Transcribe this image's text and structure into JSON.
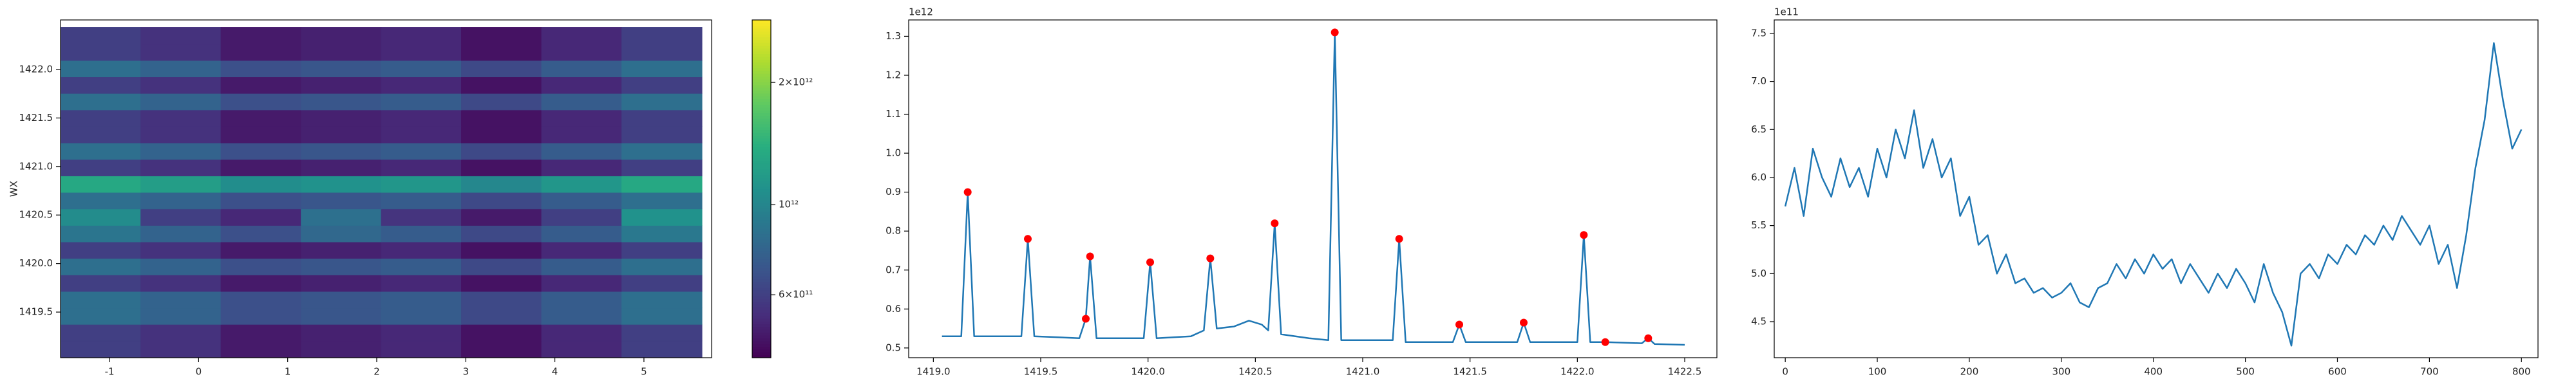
{
  "chart_data": [
    {
      "type": "heatmap",
      "ylabel": "WX",
      "colormap": "viridis",
      "x": [
        -1.1,
        -0.2,
        0.7,
        1.6,
        2.5,
        3.4,
        4.3,
        5.2
      ],
      "y": [
        1419.12,
        1419.29,
        1419.46,
        1419.63,
        1419.8,
        1419.97,
        1420.14,
        1420.31,
        1420.48,
        1420.65,
        1420.82,
        1420.99,
        1421.16,
        1421.33,
        1421.5,
        1421.67,
        1421.84,
        1422.01,
        1422.18,
        1422.35
      ],
      "z": [
        [
          600000000000.0,
          550000000000.0,
          480000000000.0,
          500000000000.0,
          520000000000.0,
          460000000000.0,
          520000000000.0,
          600000000000.0
        ],
        [
          600000000000.0,
          550000000000.0,
          480000000000.0,
          500000000000.0,
          520000000000.0,
          460000000000.0,
          520000000000.0,
          600000000000.0
        ],
        [
          840000000000.0,
          770000000000.0,
          670000000000.0,
          700000000000.0,
          730000000000.0,
          640000000000.0,
          730000000000.0,
          840000000000.0
        ],
        [
          840000000000.0,
          770000000000.0,
          670000000000.0,
          700000000000.0,
          730000000000.0,
          640000000000.0,
          730000000000.0,
          840000000000.0
        ],
        [
          600000000000.0,
          550000000000.0,
          480000000000.0,
          500000000000.0,
          520000000000.0,
          460000000000.0,
          520000000000.0,
          600000000000.0
        ],
        [
          840000000000.0,
          770000000000.0,
          670000000000.0,
          700000000000.0,
          730000000000.0,
          640000000000.0,
          730000000000.0,
          840000000000.0
        ],
        [
          600000000000.0,
          550000000000.0,
          480000000000.0,
          500000000000.0,
          520000000000.0,
          460000000000.0,
          520000000000.0,
          600000000000.0
        ],
        [
          880000000000.0,
          770000000000.0,
          670000000000.0,
          800000000000.0,
          730000000000.0,
          640000000000.0,
          730000000000.0,
          900000000000.0
        ],
        [
          1050000000000.0,
          600000000000.0,
          520000000000.0,
          850000000000.0,
          560000000000.0,
          480000000000.0,
          600000000000.0,
          1100000000000.0
        ],
        [
          840000000000.0,
          770000000000.0,
          670000000000.0,
          700000000000.0,
          730000000000.0,
          640000000000.0,
          730000000000.0,
          840000000000.0
        ],
        [
          1320000000000.0,
          1210000000000.0,
          1060000000000.0,
          1100000000000.0,
          1140000000000.0,
          1010000000000.0,
          1140000000000.0,
          1320000000000.0
        ],
        [
          600000000000.0,
          550000000000.0,
          480000000000.0,
          500000000000.0,
          520000000000.0,
          460000000000.0,
          520000000000.0,
          600000000000.0
        ],
        [
          840000000000.0,
          770000000000.0,
          670000000000.0,
          700000000000.0,
          730000000000.0,
          640000000000.0,
          730000000000.0,
          840000000000.0
        ],
        [
          600000000000.0,
          550000000000.0,
          480000000000.0,
          500000000000.0,
          520000000000.0,
          460000000000.0,
          520000000000.0,
          600000000000.0
        ],
        [
          600000000000.0,
          550000000000.0,
          480000000000.0,
          500000000000.0,
          520000000000.0,
          460000000000.0,
          520000000000.0,
          600000000000.0
        ],
        [
          840000000000.0,
          770000000000.0,
          670000000000.0,
          700000000000.0,
          730000000000.0,
          640000000000.0,
          730000000000.0,
          840000000000.0
        ],
        [
          600000000000.0,
          550000000000.0,
          480000000000.0,
          500000000000.0,
          520000000000.0,
          460000000000.0,
          520000000000.0,
          600000000000.0
        ],
        [
          840000000000.0,
          770000000000.0,
          670000000000.0,
          700000000000.0,
          730000000000.0,
          640000000000.0,
          730000000000.0,
          840000000000.0
        ],
        [
          600000000000.0,
          550000000000.0,
          480000000000.0,
          500000000000.0,
          520000000000.0,
          460000000000.0,
          520000000000.0,
          600000000000.0
        ],
        [
          600000000000.0,
          550000000000.0,
          480000000000.0,
          500000000000.0,
          520000000000.0,
          460000000000.0,
          520000000000.0,
          600000000000.0
        ]
      ],
      "xlim": [
        -1.55,
        5.76
      ],
      "ylim": [
        1419.03,
        1422.51
      ],
      "xticks": [
        -1,
        0,
        1,
        2,
        3,
        4,
        5
      ],
      "yticks": [
        1419.5,
        {
          "value": 1420,
          "label": "1420.0"
        },
        1420.5,
        {
          "value": 1421,
          "label": "1421.0"
        },
        1421.5,
        {
          "value": 1422,
          "label": "1422.0"
        }
      ],
      "colorbar": {
        "scale": "log",
        "lim": [
          420000000000.0,
          2850000000000.0
        ],
        "ticks": [
          {
            "value": 600000000000.0,
            "label": "6×10¹¹"
          },
          {
            "value": 1000000000000.0,
            "label": "10¹²"
          },
          {
            "value": 2000000000000.0,
            "label": "2×10¹²"
          }
        ]
      }
    },
    {
      "type": "line",
      "offset_text": "1e12",
      "series": [
        {
          "style": "line",
          "color": "#1f77b4",
          "x": [
            1419.04,
            1419.13,
            1419.16,
            1419.19,
            1419.41,
            1419.44,
            1419.47,
            1419.68,
            1419.71,
            1419.73,
            1419.76,
            1419.98,
            1420.01,
            1420.04,
            1420.2,
            1420.26,
            1420.29,
            1420.32,
            1420.4,
            1420.47,
            1420.53,
            1420.56,
            1420.59,
            1420.62,
            1420.75,
            1420.84,
            1420.87,
            1420.9,
            1421.14,
            1421.17,
            1421.2,
            1421.42,
            1421.45,
            1421.48,
            1421.72,
            1421.75,
            1421.78,
            1422.0,
            1422.03,
            1422.06,
            1422.13,
            1422.3,
            1422.33,
            1422.36,
            1422.5
          ],
          "values": [
            0.53,
            0.53,
            0.9,
            0.53,
            0.53,
            0.78,
            0.53,
            0.525,
            0.575,
            0.735,
            0.525,
            0.525,
            0.72,
            0.525,
            0.53,
            0.545,
            0.73,
            0.55,
            0.555,
            0.57,
            0.56,
            0.545,
            0.82,
            0.535,
            0.525,
            0.52,
            1.31,
            0.52,
            0.52,
            0.78,
            0.515,
            0.515,
            0.56,
            0.515,
            0.515,
            0.565,
            0.515,
            0.515,
            0.79,
            0.515,
            0.515,
            0.512,
            0.525,
            0.51,
            0.508
          ]
        },
        {
          "style": "markers",
          "color": "#ff0000",
          "x": [
            1419.16,
            1419.44,
            1419.71,
            1419.73,
            1420.01,
            1420.29,
            1420.59,
            1420.87,
            1421.17,
            1421.45,
            1421.75,
            1422.03,
            1422.13,
            1422.33
          ],
          "values": [
            0.9,
            0.78,
            0.575,
            0.735,
            0.72,
            0.73,
            0.82,
            1.31,
            0.78,
            0.56,
            0.565,
            0.79,
            0.515,
            0.525
          ]
        }
      ],
      "xlim": [
        1418.885,
        1422.65
      ],
      "ylim": [
        0.475,
        1.342
      ],
      "xticks": [
        {
          "value": 1419,
          "label": "1419.0"
        },
        1419.5,
        {
          "value": 1420,
          "label": "1420.0"
        },
        1420.5,
        {
          "value": 1421,
          "label": "1421.0"
        },
        1421.5,
        {
          "value": 1422,
          "label": "1422.0"
        },
        1422.5
      ],
      "yticks": [
        0.5,
        0.6,
        0.7,
        0.8,
        0.9,
        {
          "value": 1,
          "label": "1.0"
        },
        1.1,
        1.2,
        1.3
      ]
    },
    {
      "type": "line",
      "offset_text": "1e11",
      "series": [
        {
          "style": "line",
          "color": "#1f77b4",
          "x": [
            0,
            10,
            20,
            30,
            40,
            50,
            60,
            70,
            80,
            90,
            100,
            110,
            120,
            130,
            140,
            150,
            160,
            170,
            180,
            190,
            200,
            210,
            220,
            230,
            240,
            250,
            260,
            270,
            280,
            290,
            300,
            310,
            320,
            330,
            340,
            350,
            360,
            370,
            380,
            390,
            400,
            410,
            420,
            430,
            440,
            450,
            460,
            470,
            480,
            490,
            500,
            510,
            520,
            530,
            540,
            550,
            560,
            570,
            580,
            590,
            600,
            610,
            620,
            630,
            640,
            650,
            660,
            670,
            680,
            690,
            700,
            710,
            720,
            730,
            740,
            750,
            760,
            770,
            780,
            790,
            800
          ],
          "values": [
            5.7,
            6.1,
            5.6,
            6.3,
            6.0,
            5.8,
            6.2,
            5.9,
            6.1,
            5.8,
            6.3,
            6.0,
            6.5,
            6.2,
            6.7,
            6.1,
            6.4,
            6.0,
            6.2,
            5.6,
            5.8,
            5.3,
            5.4,
            5.0,
            5.2,
            4.9,
            4.95,
            4.8,
            4.85,
            4.75,
            4.8,
            4.9,
            4.7,
            4.65,
            4.85,
            4.9,
            5.1,
            4.95,
            5.15,
            5.0,
            5.2,
            5.05,
            5.15,
            4.9,
            5.1,
            4.95,
            4.8,
            5.0,
            4.85,
            5.05,
            4.9,
            4.7,
            5.1,
            4.8,
            4.6,
            4.25,
            5.0,
            5.1,
            4.95,
            5.2,
            5.1,
            5.3,
            5.2,
            5.4,
            5.3,
            5.5,
            5.35,
            5.6,
            5.45,
            5.3,
            5.5,
            5.1,
            5.3,
            4.85,
            5.4,
            6.1,
            6.6,
            7.4,
            6.8,
            6.3,
            6.5
          ]
        }
      ],
      "xlim": [
        -12,
        818
      ],
      "ylim": [
        4.125,
        7.64
      ],
      "xticks": [
        0,
        100,
        200,
        300,
        400,
        500,
        600,
        700,
        800
      ],
      "yticks": [
        4.5,
        {
          "value": 5,
          "label": "5.0"
        },
        5.5,
        {
          "value": 6,
          "label": "6.0"
        },
        6.5,
        {
          "value": 7,
          "label": "7.0"
        },
        7.5
      ]
    }
  ]
}
